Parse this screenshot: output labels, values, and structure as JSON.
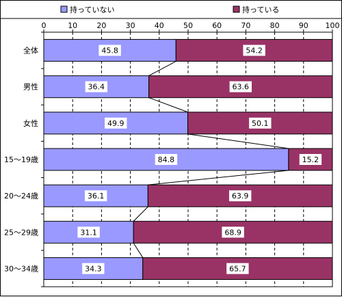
{
  "chart_data": {
    "type": "bar",
    "stacked": true,
    "orientation": "horizontal",
    "percent_stacked": true,
    "series_lines": true,
    "categories": [
      "全体",
      "男性",
      "女性",
      "15〜19歳",
      "20〜24歳",
      "25〜29歳",
      "30〜34歳"
    ],
    "series": [
      {
        "name": "持っていない",
        "color": "#9999ff",
        "values": [
          45.8,
          36.4,
          49.9,
          84.8,
          36.1,
          31.1,
          34.3
        ]
      },
      {
        "name": "持っている",
        "color": "#993366",
        "values": [
          54.2,
          63.6,
          50.1,
          15.2,
          63.9,
          68.9,
          65.7
        ]
      }
    ],
    "xlim": [
      0,
      100
    ],
    "x_ticks": [
      0,
      10,
      20,
      30,
      40,
      50,
      60,
      70,
      80,
      90,
      100
    ],
    "grid": "vertical-dashed",
    "legend_position": "top",
    "title": "",
    "xlabel": "",
    "ylabel": ""
  }
}
